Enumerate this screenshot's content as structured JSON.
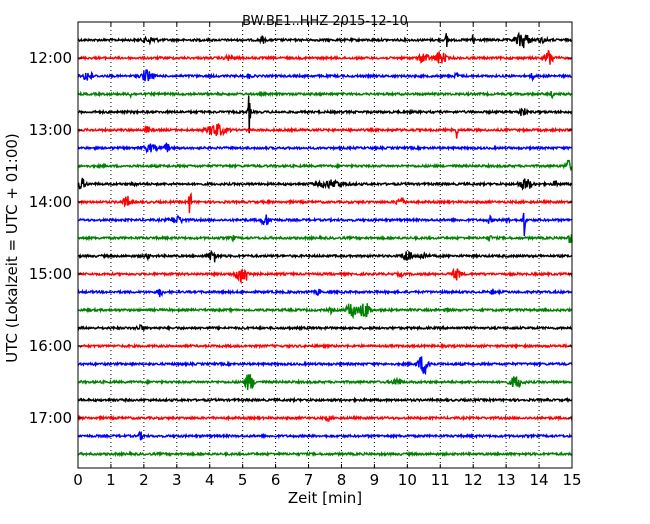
{
  "chart_data": {
    "type": "line",
    "title": "BW.BE1..HHZ 2015-12-10",
    "xlabel": "Zeit  [min]",
    "ylabel": "UTC (Lokalzeit = UTC + 01:00)",
    "xlim": [
      0,
      15
    ],
    "x_ticks": [
      0,
      1,
      2,
      3,
      4,
      5,
      6,
      7,
      8,
      9,
      10,
      11,
      12,
      13,
      14,
      15
    ],
    "y_tick_labels": [
      "12:00",
      "13:00",
      "14:00",
      "15:00",
      "16:00",
      "17:00"
    ],
    "trace_interval_min": 15,
    "grid": "vertical dotted",
    "colors": [
      "#000000",
      "#ff0000",
      "#0000ff",
      "#008000"
    ],
    "traces": [
      {
        "start": "11:45",
        "color": "#000000",
        "events": [
          {
            "t": 2.2,
            "a": 0.15,
            "d": 0.3
          },
          {
            "t": 5.6,
            "a": 0.2,
            "d": 0.1
          },
          {
            "t": 11.2,
            "a": 0.6,
            "d": 0.05
          },
          {
            "t": 12.0,
            "a": 0.7,
            "d": 0.05
          },
          {
            "t": 13.5,
            "a": 0.45,
            "d": 0.3
          },
          {
            "t": 14.1,
            "a": 0.12,
            "d": 0.2
          }
        ]
      },
      {
        "start": "12:00",
        "color": "#ff0000",
        "events": [
          {
            "t": 4.6,
            "a": 0.15,
            "d": 0.2
          },
          {
            "t": 10.5,
            "a": 0.3,
            "d": 0.2
          },
          {
            "t": 11.0,
            "a": 0.35,
            "d": 0.25
          },
          {
            "t": 14.3,
            "a": 0.45,
            "d": 0.2
          }
        ]
      },
      {
        "start": "12:15",
        "color": "#0000ff",
        "events": [
          {
            "t": 0.3,
            "a": 0.3,
            "d": 0.2
          },
          {
            "t": 2.1,
            "a": 0.35,
            "d": 0.25
          },
          {
            "t": 5.2,
            "a": 0.12,
            "d": 0.1
          },
          {
            "t": 11.5,
            "a": 0.15,
            "d": 0.1
          },
          {
            "t": 13.8,
            "a": 0.15,
            "d": 0.1
          }
        ]
      },
      {
        "start": "12:30",
        "color": "#008000",
        "events": [
          {
            "t": 1.6,
            "a": 0.12,
            "d": 0.1
          },
          {
            "t": 14.4,
            "a": 0.15,
            "d": 0.1
          }
        ]
      },
      {
        "start": "12:45",
        "color": "#000000",
        "events": [
          {
            "t": 5.2,
            "a": 1.3,
            "d": 0.05
          },
          {
            "t": 13.5,
            "a": 0.25,
            "d": 0.15
          }
        ]
      },
      {
        "start": "13:00",
        "color": "#ff0000",
        "events": [
          {
            "t": 2.1,
            "a": 0.2,
            "d": 0.1
          },
          {
            "t": 4.2,
            "a": 0.35,
            "d": 0.4
          },
          {
            "t": 11.5,
            "a": 0.5,
            "d": 0.05
          }
        ]
      },
      {
        "start": "13:15",
        "color": "#0000ff",
        "events": [
          {
            "t": 2.2,
            "a": 0.2,
            "d": 0.3
          },
          {
            "t": 2.7,
            "a": 0.3,
            "d": 0.1
          }
        ]
      },
      {
        "start": "13:30",
        "color": "#008000",
        "events": [
          {
            "t": 14.9,
            "a": 0.3,
            "d": 0.15
          }
        ]
      },
      {
        "start": "13:45",
        "color": "#000000",
        "events": [
          {
            "t": 0.1,
            "a": 0.3,
            "d": 0.2
          },
          {
            "t": 1.7,
            "a": 0.12,
            "d": 0.1
          },
          {
            "t": 7.7,
            "a": 0.2,
            "d": 0.6
          },
          {
            "t": 13.6,
            "a": 0.3,
            "d": 0.3
          },
          {
            "t": 14.5,
            "a": 0.15,
            "d": 0.1
          }
        ]
      },
      {
        "start": "14:00",
        "color": "#ff0000",
        "events": [
          {
            "t": 1.5,
            "a": 0.3,
            "d": 0.2
          },
          {
            "t": 3.4,
            "a": 1.2,
            "d": 0.05
          },
          {
            "t": 9.8,
            "a": 0.25,
            "d": 0.2
          }
        ]
      },
      {
        "start": "14:15",
        "color": "#0000ff",
        "events": [
          {
            "t": 3.0,
            "a": 0.2,
            "d": 0.3
          },
          {
            "t": 5.7,
            "a": 0.3,
            "d": 0.2
          },
          {
            "t": 12.5,
            "a": 0.2,
            "d": 0.1
          },
          {
            "t": 13.05,
            "a": 0.75,
            "d": 0.05
          },
          {
            "t": 13.55,
            "a": 1.0,
            "d": 0.05
          }
        ]
      },
      {
        "start": "14:30",
        "color": "#008000",
        "events": [
          {
            "t": 4.7,
            "a": 0.12,
            "d": 0.1
          },
          {
            "t": 12.5,
            "a": 0.15,
            "d": 0.1
          },
          {
            "t": 14.95,
            "a": 0.3,
            "d": 0.1
          }
        ]
      },
      {
        "start": "14:45",
        "color": "#000000",
        "events": [
          {
            "t": 2.1,
            "a": 0.15,
            "d": 0.1
          },
          {
            "t": 4.1,
            "a": 0.35,
            "d": 0.2
          },
          {
            "t": 10.0,
            "a": 0.35,
            "d": 0.2
          },
          {
            "t": 10.5,
            "a": 0.15,
            "d": 0.2
          }
        ]
      },
      {
        "start": "15:00",
        "color": "#ff0000",
        "events": [
          {
            "t": 5.0,
            "a": 0.5,
            "d": 0.3
          },
          {
            "t": 9.8,
            "a": 0.12,
            "d": 0.1
          },
          {
            "t": 11.5,
            "a": 0.3,
            "d": 0.2
          }
        ]
      },
      {
        "start": "15:15",
        "color": "#0000ff",
        "events": [
          {
            "t": 2.5,
            "a": 0.3,
            "d": 0.1
          },
          {
            "t": 7.3,
            "a": 0.15,
            "d": 0.1
          },
          {
            "t": 12.6,
            "a": 0.15,
            "d": 0.1
          }
        ]
      },
      {
        "start": "15:30",
        "color": "#008000",
        "events": [
          {
            "t": 7.7,
            "a": 0.15,
            "d": 0.1
          },
          {
            "t": 8.3,
            "a": 0.5,
            "d": 0.2
          },
          {
            "t": 8.7,
            "a": 0.45,
            "d": 0.25
          },
          {
            "t": 11.2,
            "a": 0.12,
            "d": 0.1
          }
        ]
      },
      {
        "start": "15:45",
        "color": "#000000",
        "events": [
          {
            "t": 1.9,
            "a": 0.12,
            "d": 0.2
          }
        ]
      },
      {
        "start": "16:00",
        "color": "#ff0000",
        "events": []
      },
      {
        "start": "16:15",
        "color": "#0000ff",
        "events": [
          {
            "t": 10.5,
            "a": 0.55,
            "d": 0.25
          }
        ]
      },
      {
        "start": "16:30",
        "color": "#008000",
        "events": [
          {
            "t": 5.2,
            "a": 0.5,
            "d": 0.2
          },
          {
            "t": 9.7,
            "a": 0.2,
            "d": 0.2
          },
          {
            "t": 13.3,
            "a": 0.35,
            "d": 0.25
          }
        ]
      },
      {
        "start": "16:45",
        "color": "#000000",
        "events": []
      },
      {
        "start": "17:00",
        "color": "#ff0000",
        "events": [
          {
            "t": 7.6,
            "a": 0.15,
            "d": 0.1
          }
        ]
      },
      {
        "start": "17:15",
        "color": "#0000ff",
        "events": [
          {
            "t": 1.9,
            "a": 0.2,
            "d": 0.1
          }
        ]
      },
      {
        "start": "17:30",
        "color": "#008000",
        "events": []
      }
    ]
  }
}
